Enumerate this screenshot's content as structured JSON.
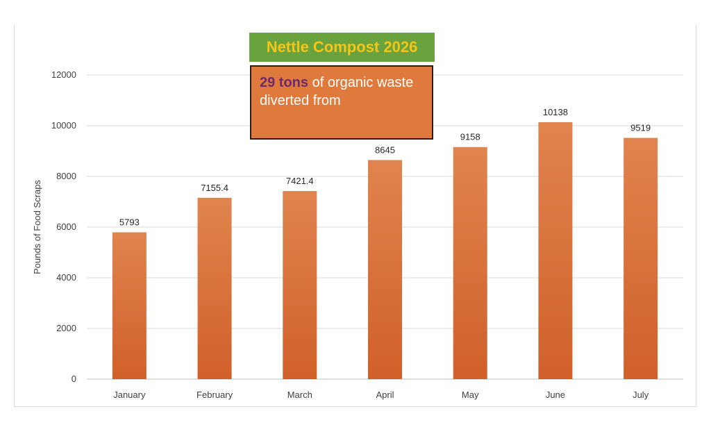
{
  "chart_data": {
    "type": "bar",
    "title": "Nettle Compost 2026",
    "annotation": {
      "highlight": "29 tons",
      "text": " of organic waste diverted from"
    },
    "categories": [
      "January",
      "February",
      "March",
      "April",
      "May",
      "June",
      "July"
    ],
    "values": [
      5793,
      7155.4,
      7421.4,
      8645,
      9158,
      10138,
      9519
    ],
    "data_labels": [
      "5793",
      "7155.4",
      "7421.4",
      "8645",
      "9158",
      "10138",
      "9519"
    ],
    "xlabel": "",
    "ylabel": "Pounds of Food Scraps",
    "ylim": [
      0,
      12000
    ],
    "yticks": [
      0,
      2000,
      4000,
      6000,
      8000,
      10000,
      12000
    ],
    "grid": true,
    "legend": "none",
    "bar_color_top": "#e0844f",
    "bar_color_bottom": "#d0602a"
  }
}
